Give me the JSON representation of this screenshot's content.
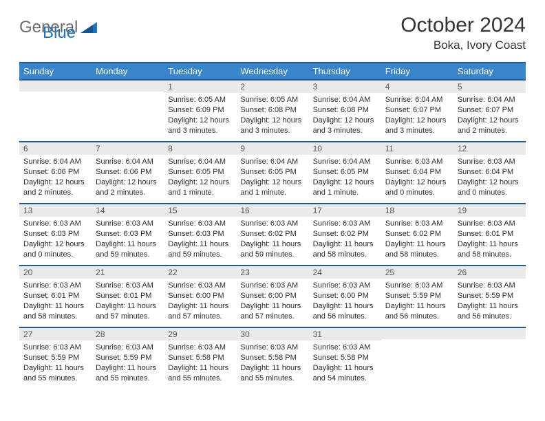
{
  "colors": {
    "header_bg": "#3a85c9",
    "header_border": "#1f5a8f",
    "daynum_bg": "#eaeaea",
    "logo_gray": "#6c6c6c",
    "logo_blue": "#2570b8",
    "text": "#333333"
  },
  "logo": {
    "part1": "General",
    "part2": "Blue"
  },
  "title": "October 2024",
  "location": "Boka, Ivory Coast",
  "weekdays": [
    "Sunday",
    "Monday",
    "Tuesday",
    "Wednesday",
    "Thursday",
    "Friday",
    "Saturday"
  ],
  "weeks": [
    [
      {
        "n": "",
        "sr": "",
        "ss": "",
        "dl": ""
      },
      {
        "n": "",
        "sr": "",
        "ss": "",
        "dl": ""
      },
      {
        "n": "1",
        "sr": "6:05 AM",
        "ss": "6:09 PM",
        "dl": "12 hours and 3 minutes."
      },
      {
        "n": "2",
        "sr": "6:05 AM",
        "ss": "6:08 PM",
        "dl": "12 hours and 3 minutes."
      },
      {
        "n": "3",
        "sr": "6:04 AM",
        "ss": "6:08 PM",
        "dl": "12 hours and 3 minutes."
      },
      {
        "n": "4",
        "sr": "6:04 AM",
        "ss": "6:07 PM",
        "dl": "12 hours and 3 minutes."
      },
      {
        "n": "5",
        "sr": "6:04 AM",
        "ss": "6:07 PM",
        "dl": "12 hours and 2 minutes."
      }
    ],
    [
      {
        "n": "6",
        "sr": "6:04 AM",
        "ss": "6:06 PM",
        "dl": "12 hours and 2 minutes."
      },
      {
        "n": "7",
        "sr": "6:04 AM",
        "ss": "6:06 PM",
        "dl": "12 hours and 2 minutes."
      },
      {
        "n": "8",
        "sr": "6:04 AM",
        "ss": "6:05 PM",
        "dl": "12 hours and 1 minute."
      },
      {
        "n": "9",
        "sr": "6:04 AM",
        "ss": "6:05 PM",
        "dl": "12 hours and 1 minute."
      },
      {
        "n": "10",
        "sr": "6:04 AM",
        "ss": "6:05 PM",
        "dl": "12 hours and 1 minute."
      },
      {
        "n": "11",
        "sr": "6:03 AM",
        "ss": "6:04 PM",
        "dl": "12 hours and 0 minutes."
      },
      {
        "n": "12",
        "sr": "6:03 AM",
        "ss": "6:04 PM",
        "dl": "12 hours and 0 minutes."
      }
    ],
    [
      {
        "n": "13",
        "sr": "6:03 AM",
        "ss": "6:03 PM",
        "dl": "12 hours and 0 minutes."
      },
      {
        "n": "14",
        "sr": "6:03 AM",
        "ss": "6:03 PM",
        "dl": "11 hours and 59 minutes."
      },
      {
        "n": "15",
        "sr": "6:03 AM",
        "ss": "6:03 PM",
        "dl": "11 hours and 59 minutes."
      },
      {
        "n": "16",
        "sr": "6:03 AM",
        "ss": "6:02 PM",
        "dl": "11 hours and 59 minutes."
      },
      {
        "n": "17",
        "sr": "6:03 AM",
        "ss": "6:02 PM",
        "dl": "11 hours and 58 minutes."
      },
      {
        "n": "18",
        "sr": "6:03 AM",
        "ss": "6:02 PM",
        "dl": "11 hours and 58 minutes."
      },
      {
        "n": "19",
        "sr": "6:03 AM",
        "ss": "6:01 PM",
        "dl": "11 hours and 58 minutes."
      }
    ],
    [
      {
        "n": "20",
        "sr": "6:03 AM",
        "ss": "6:01 PM",
        "dl": "11 hours and 58 minutes."
      },
      {
        "n": "21",
        "sr": "6:03 AM",
        "ss": "6:01 PM",
        "dl": "11 hours and 57 minutes."
      },
      {
        "n": "22",
        "sr": "6:03 AM",
        "ss": "6:00 PM",
        "dl": "11 hours and 57 minutes."
      },
      {
        "n": "23",
        "sr": "6:03 AM",
        "ss": "6:00 PM",
        "dl": "11 hours and 57 minutes."
      },
      {
        "n": "24",
        "sr": "6:03 AM",
        "ss": "6:00 PM",
        "dl": "11 hours and 56 minutes."
      },
      {
        "n": "25",
        "sr": "6:03 AM",
        "ss": "5:59 PM",
        "dl": "11 hours and 56 minutes."
      },
      {
        "n": "26",
        "sr": "6:03 AM",
        "ss": "5:59 PM",
        "dl": "11 hours and 56 minutes."
      }
    ],
    [
      {
        "n": "27",
        "sr": "6:03 AM",
        "ss": "5:59 PM",
        "dl": "11 hours and 55 minutes."
      },
      {
        "n": "28",
        "sr": "6:03 AM",
        "ss": "5:59 PM",
        "dl": "11 hours and 55 minutes."
      },
      {
        "n": "29",
        "sr": "6:03 AM",
        "ss": "5:58 PM",
        "dl": "11 hours and 55 minutes."
      },
      {
        "n": "30",
        "sr": "6:03 AM",
        "ss": "5:58 PM",
        "dl": "11 hours and 55 minutes."
      },
      {
        "n": "31",
        "sr": "6:03 AM",
        "ss": "5:58 PM",
        "dl": "11 hours and 54 minutes."
      },
      {
        "n": "",
        "sr": "",
        "ss": "",
        "dl": ""
      },
      {
        "n": "",
        "sr": "",
        "ss": "",
        "dl": ""
      }
    ]
  ],
  "labels": {
    "sunrise": "Sunrise: ",
    "sunset": "Sunset: ",
    "daylight": "Daylight: "
  }
}
